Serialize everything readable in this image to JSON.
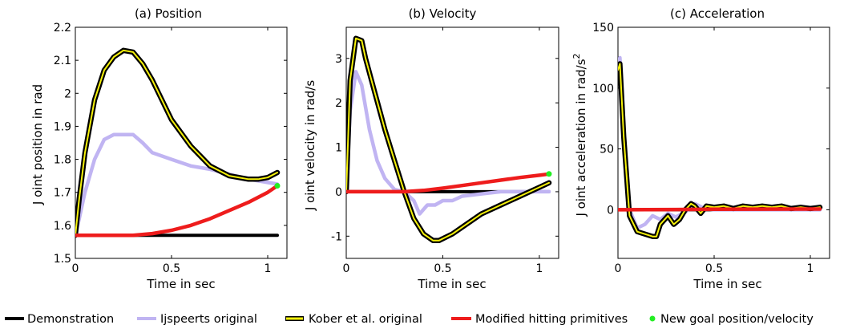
{
  "chart_data": [
    {
      "type": "line",
      "title": "(a) Position",
      "xlabel": "Time in sec",
      "ylabel": "J oint position in rad",
      "xlim": [
        0,
        1.1
      ],
      "ylim": [
        1.5,
        2.2
      ],
      "xticks": [
        0,
        0.5,
        1
      ],
      "xtick_labels": [
        "0",
        "0.5",
        "1"
      ],
      "yticks": [
        1.5,
        1.6,
        1.7,
        1.8,
        1.9,
        2.0,
        2.1,
        2.2
      ],
      "ytick_labels": [
        "1.5",
        "1.6",
        "1.7",
        "1.8",
        "1.9",
        "2",
        "2.1",
        "2.2"
      ],
      "series": [
        {
          "name": "Demonstration",
          "x": [
            0,
            1.05
          ],
          "y": [
            1.57,
            1.57
          ]
        },
        {
          "name": "Ijspeerts original",
          "x": [
            0,
            0.02,
            0.05,
            0.1,
            0.15,
            0.2,
            0.25,
            0.3,
            0.35,
            0.4,
            0.5,
            0.6,
            0.7,
            0.8,
            0.9,
            1.0,
            1.05
          ],
          "y": [
            1.57,
            1.62,
            1.7,
            1.8,
            1.86,
            1.875,
            1.875,
            1.875,
            1.85,
            1.82,
            1.8,
            1.78,
            1.77,
            1.755,
            1.74,
            1.73,
            1.725
          ]
        },
        {
          "name": "Kober et al. original",
          "x": [
            0,
            0.02,
            0.05,
            0.1,
            0.15,
            0.2,
            0.25,
            0.3,
            0.35,
            0.4,
            0.45,
            0.5,
            0.6,
            0.7,
            0.8,
            0.9,
            0.95,
            1.0,
            1.05
          ],
          "y": [
            1.57,
            1.68,
            1.82,
            1.98,
            2.07,
            2.11,
            2.13,
            2.125,
            2.09,
            2.04,
            1.98,
            1.92,
            1.84,
            1.78,
            1.75,
            1.74,
            1.74,
            1.745,
            1.76
          ]
        },
        {
          "name": "Modified hitting primitives",
          "x": [
            0,
            0.3,
            0.4,
            0.5,
            0.6,
            0.7,
            0.8,
            0.9,
            1.0,
            1.05
          ],
          "y": [
            1.57,
            1.57,
            1.575,
            1.585,
            1.6,
            1.62,
            1.645,
            1.67,
            1.7,
            1.72
          ]
        }
      ],
      "markers": [
        {
          "name": "New goal position/velocity",
          "x": 1.05,
          "y": 1.72
        }
      ]
    },
    {
      "type": "line",
      "title": "(b) Velocity",
      "xlabel": "Time in sec",
      "ylabel": "J oint velocity in rad/s",
      "xlim": [
        0,
        1.1
      ],
      "ylim": [
        -1.5,
        3.7
      ],
      "xticks": [
        0,
        0.5,
        1
      ],
      "xtick_labels": [
        "0",
        "0.5",
        "1"
      ],
      "yticks": [
        -1,
        0,
        1,
        2,
        3
      ],
      "ytick_labels": [
        "-1",
        "0",
        "1",
        "2",
        "3"
      ],
      "series": [
        {
          "name": "Demonstration",
          "x": [
            0,
            1.05
          ],
          "y": [
            0,
            0
          ]
        },
        {
          "name": "Ijspeerts original",
          "x": [
            0,
            0.02,
            0.05,
            0.08,
            0.12,
            0.16,
            0.2,
            0.25,
            0.3,
            0.35,
            0.38,
            0.42,
            0.46,
            0.5,
            0.55,
            0.6,
            0.7,
            0.8,
            1.05
          ],
          "y": [
            0,
            1.8,
            2.7,
            2.4,
            1.4,
            0.7,
            0.3,
            0.05,
            0.0,
            -0.2,
            -0.5,
            -0.3,
            -0.3,
            -0.2,
            -0.2,
            -0.1,
            -0.05,
            0,
            0
          ]
        },
        {
          "name": "Kober et al. original",
          "x": [
            0,
            0.02,
            0.05,
            0.08,
            0.1,
            0.15,
            0.2,
            0.25,
            0.3,
            0.35,
            0.4,
            0.45,
            0.48,
            0.55,
            0.6,
            0.7,
            0.8,
            0.9,
            1.0,
            1.05
          ],
          "y": [
            0,
            2.5,
            3.45,
            3.4,
            3.0,
            2.2,
            1.4,
            0.7,
            0.0,
            -0.6,
            -0.95,
            -1.1,
            -1.1,
            -0.95,
            -0.8,
            -0.5,
            -0.3,
            -0.1,
            0.1,
            0.2
          ]
        },
        {
          "name": "Modified hitting primitives",
          "x": [
            0,
            0.3,
            0.4,
            0.5,
            0.6,
            0.7,
            0.8,
            0.9,
            1.0,
            1.05
          ],
          "y": [
            0,
            0,
            0.03,
            0.08,
            0.14,
            0.2,
            0.26,
            0.32,
            0.37,
            0.4
          ]
        }
      ],
      "markers": [
        {
          "name": "New goal position/velocity",
          "x": 1.05,
          "y": 0.4
        }
      ]
    },
    {
      "type": "line",
      "title": "(c) Acceleration",
      "xlabel": "Time in sec",
      "ylabel": "J oint acceleration in rad/s",
      "ylabel_superscript": "2",
      "xlim": [
        0,
        1.1
      ],
      "ylim": [
        -40,
        150
      ],
      "xticks": [
        0,
        0.5,
        1
      ],
      "xtick_labels": [
        "0",
        "0.5",
        "1"
      ],
      "yticks": [
        0,
        50,
        100,
        150
      ],
      "ytick_labels": [
        "0",
        "50",
        "100",
        "150"
      ],
      "series": [
        {
          "name": "Demonstration",
          "x": [
            0,
            1.05
          ],
          "y": [
            0,
            0
          ]
        },
        {
          "name": "Ijspeerts original",
          "x": [
            0,
            0.01,
            0.03,
            0.06,
            0.1,
            0.14,
            0.18,
            0.22,
            0.26,
            0.3,
            0.35,
            0.4,
            0.45,
            0.5,
            0.6,
            0.8,
            1.05
          ],
          "y": [
            120,
            125,
            60,
            0,
            -15,
            -12,
            -5,
            -8,
            -3,
            -6,
            -2,
            5,
            1,
            0,
            0,
            0,
            0
          ]
        },
        {
          "name": "Kober et al. original",
          "x": [
            0,
            0.01,
            0.03,
            0.06,
            0.1,
            0.14,
            0.18,
            0.2,
            0.22,
            0.26,
            0.29,
            0.32,
            0.35,
            0.38,
            0.4,
            0.43,
            0.46,
            0.5,
            0.55,
            0.6,
            0.65,
            0.7,
            0.75,
            0.8,
            0.85,
            0.9,
            0.95,
            1.0,
            1.05
          ],
          "y": [
            115,
            120,
            60,
            -5,
            -18,
            -20,
            -22,
            -22,
            -12,
            -5,
            -12,
            -8,
            0,
            5,
            3,
            -3,
            3,
            2,
            3,
            1,
            3,
            2,
            3,
            2,
            3,
            1,
            2,
            1,
            2
          ]
        },
        {
          "name": "Modified hitting primitives",
          "x": [
            0,
            0.3,
            0.5,
            1.05
          ],
          "y": [
            0,
            0.2,
            0.4,
            0.6
          ]
        }
      ]
    }
  ],
  "legend": [
    {
      "label": "Demonstration",
      "color": "#000000",
      "style": "line"
    },
    {
      "label": "Ijspeerts original",
      "color": "#c0b4f2",
      "style": "line"
    },
    {
      "label": "Kober et al. original",
      "color": "#f5f10a",
      "style": "outlined-line"
    },
    {
      "label": "Modified hitting primitives",
      "color": "#ee1c1c",
      "style": "line"
    },
    {
      "label": "New goal position/velocity",
      "color": "#22ee22",
      "style": "dot"
    }
  ],
  "colors": {
    "demonstration": "#000000",
    "ijspeert": "#c0b4f2",
    "kober_fill": "#f5f10a",
    "kober_outline": "#000000",
    "modified": "#ee1c1c",
    "goal": "#22ee22"
  }
}
